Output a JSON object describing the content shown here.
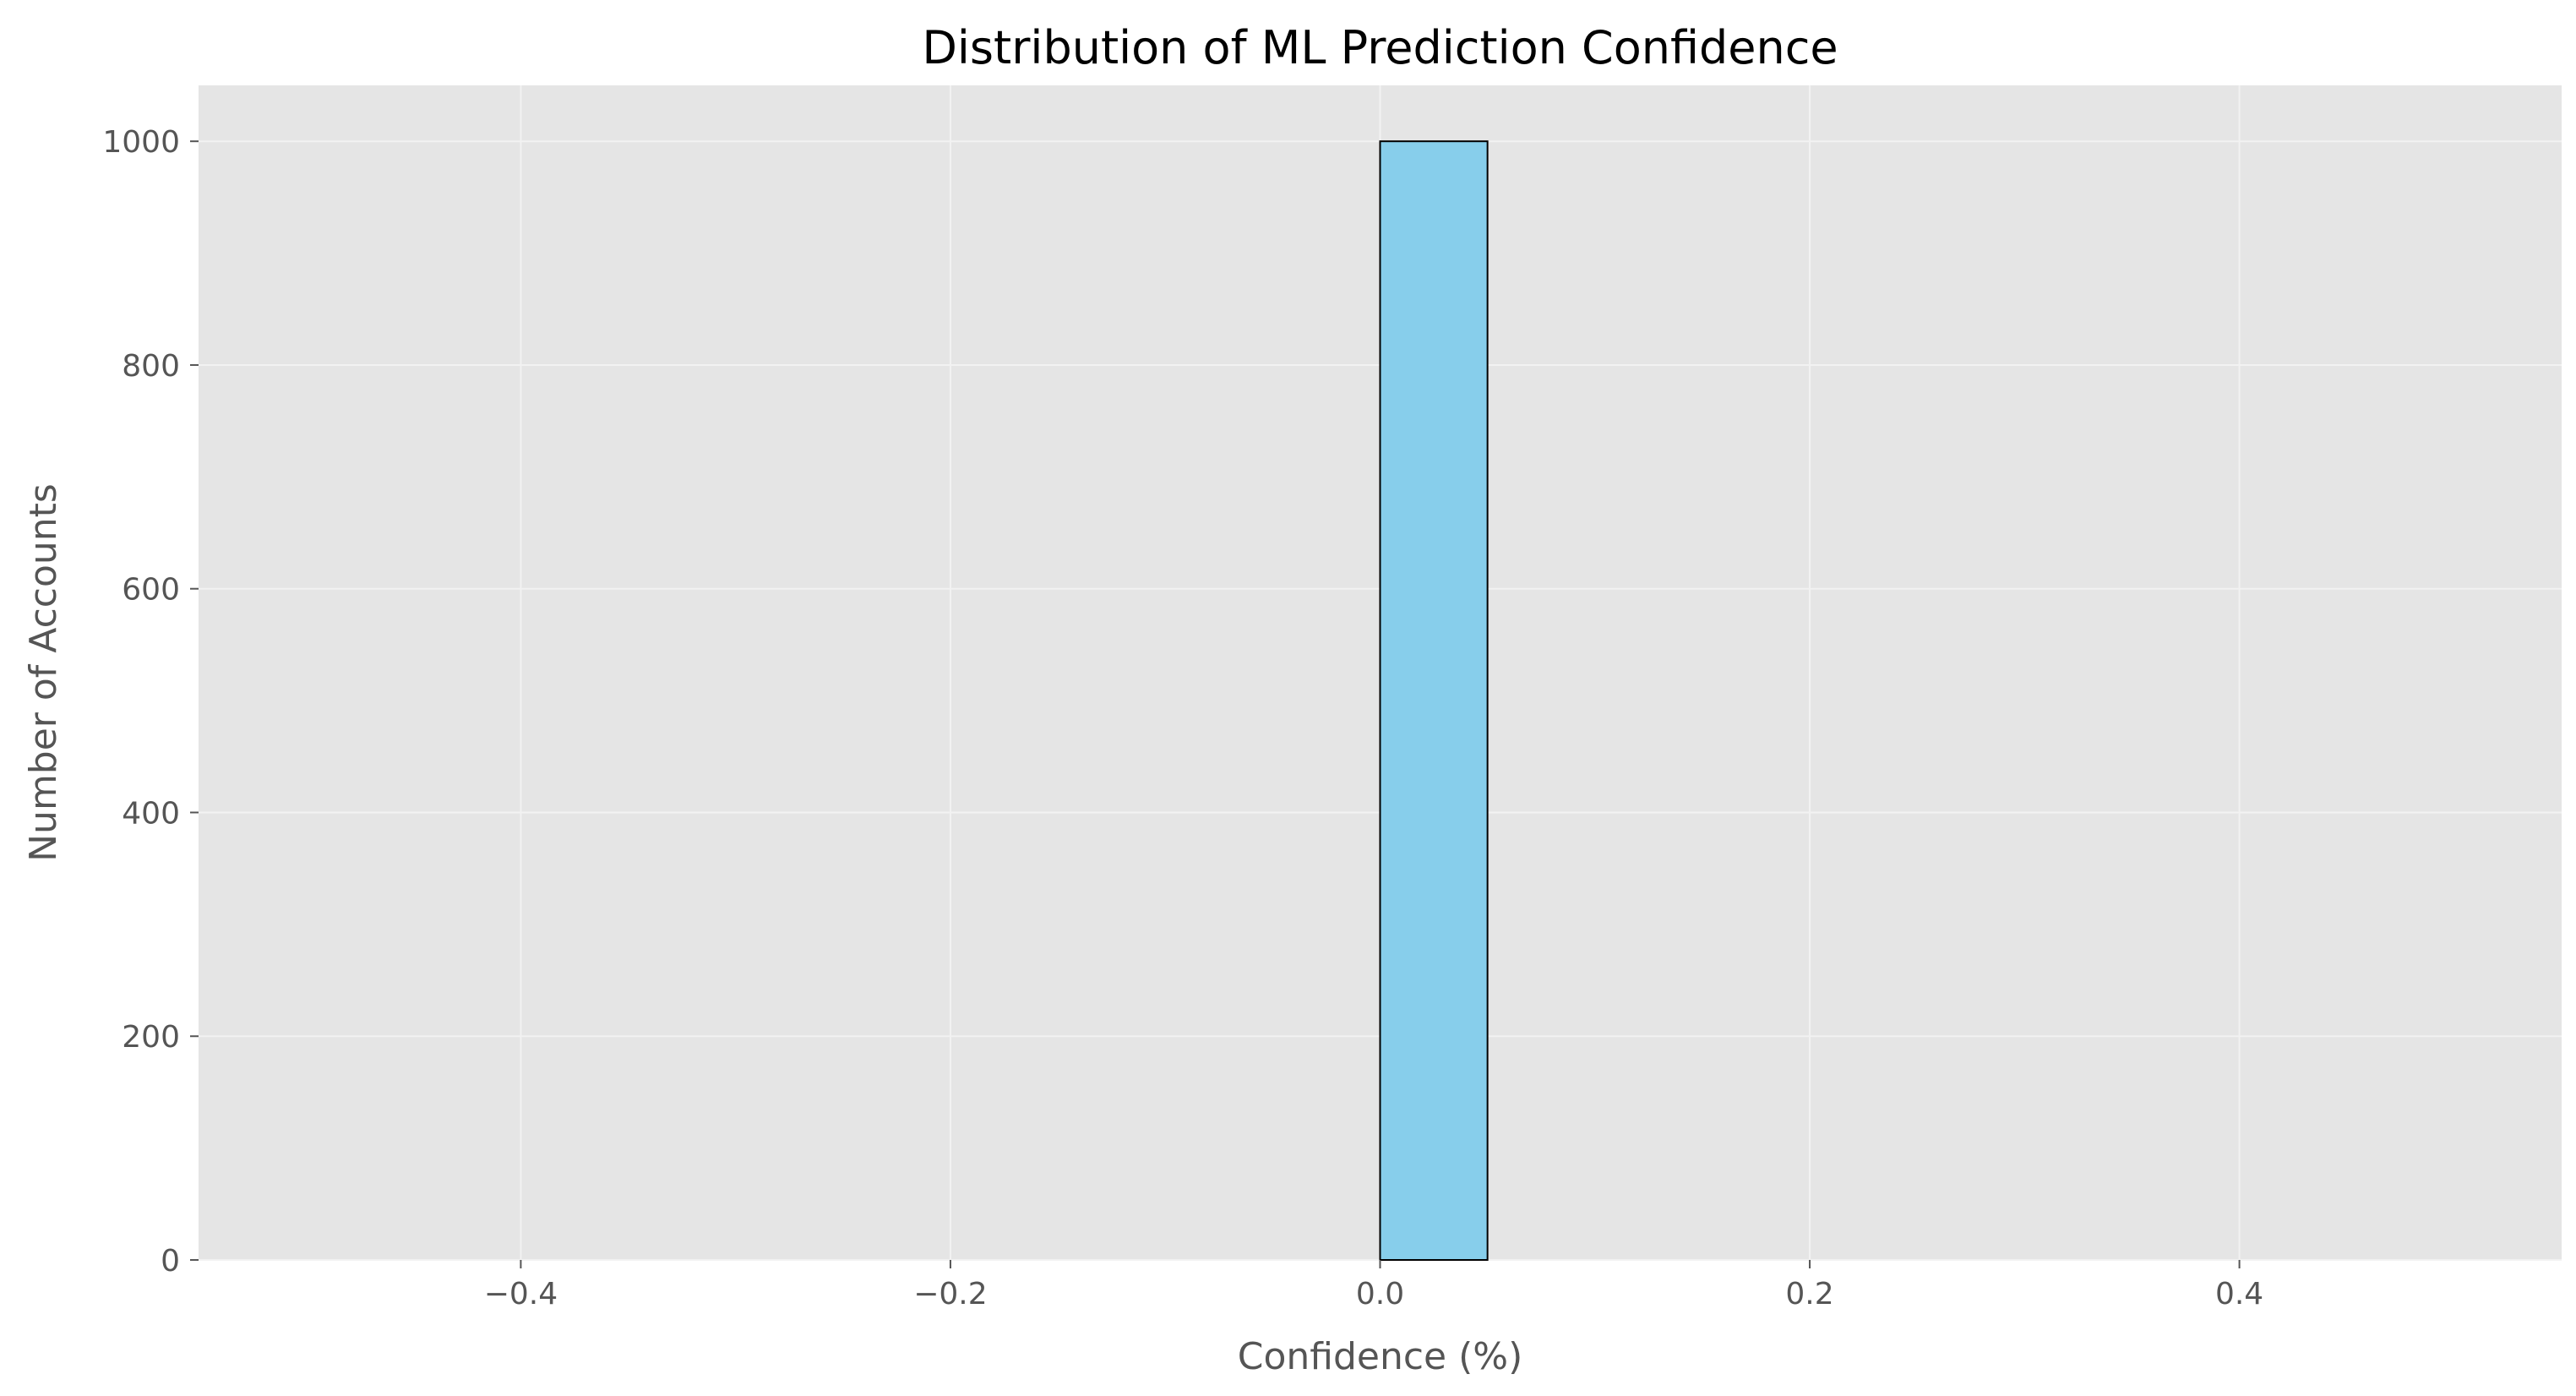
{
  "chart_data": {
    "type": "bar",
    "title": "Distribution of ML Prediction Confidence",
    "xlabel": "Confidence (%)",
    "ylabel": "Number of Accounts",
    "xlim": [
      -0.55,
      0.55
    ],
    "ylim": [
      0,
      1050
    ],
    "x_ticks": [
      -0.4,
      -0.2,
      0.0,
      0.2,
      0.4
    ],
    "x_tick_labels": [
      "−0.4",
      "−0.2",
      "0.0",
      "0.2",
      "0.4"
    ],
    "y_ticks": [
      0,
      200,
      400,
      600,
      800,
      1000
    ],
    "y_tick_labels": [
      "0",
      "200",
      "400",
      "600",
      "800",
      "1000"
    ],
    "bins": [
      {
        "x0": 0.0,
        "x1": 0.05,
        "count": 1000
      }
    ],
    "grid": true,
    "colors": {
      "plot_background": "#e5e5e5",
      "grid": "#f2f2f2",
      "bar_fill": "#87ceeb",
      "bar_edge": "#000000"
    }
  }
}
